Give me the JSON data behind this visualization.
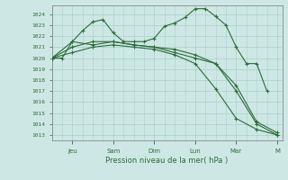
{
  "bg_color": "#cde8e4",
  "grid_color": "#aacfcb",
  "line_color": "#2d6b3a",
  "ylabel_vals": [
    1013,
    1014,
    1015,
    1016,
    1017,
    1018,
    1019,
    1020,
    1021,
    1022,
    1023,
    1024
  ],
  "xlabel": "Pression niveau de la mer( hPa )",
  "xtick_labels": [
    "Jeu",
    "Sam",
    "Dim",
    "Lun",
    "Mar",
    "M"
  ],
  "xtick_positions": [
    2,
    6,
    10,
    14,
    18,
    22
  ],
  "series1_x": [
    0,
    1,
    2,
    3,
    4,
    5,
    6,
    7,
    8,
    9,
    10,
    11,
    12,
    13,
    14,
    15,
    16,
    17,
    18,
    19,
    20,
    21
  ],
  "series1_y": [
    1020.0,
    1020.0,
    1021.5,
    1022.5,
    1023.3,
    1023.5,
    1022.3,
    1021.5,
    1021.5,
    1021.5,
    1021.8,
    1022.9,
    1023.2,
    1023.7,
    1024.5,
    1024.5,
    1023.8,
    1023.0,
    1021.0,
    1019.5,
    1019.5,
    1017.0
  ],
  "series2_x": [
    0,
    2,
    4,
    6,
    8,
    10,
    12,
    14,
    16,
    18,
    20,
    22
  ],
  "series2_y": [
    1020.0,
    1021.0,
    1021.5,
    1021.5,
    1021.2,
    1021.0,
    1020.8,
    1020.3,
    1019.5,
    1017.0,
    1014.0,
    1013.0
  ],
  "series3_x": [
    0,
    2,
    4,
    6,
    8,
    10,
    12,
    14,
    16,
    18,
    20,
    22
  ],
  "series3_y": [
    1020.0,
    1020.5,
    1021.0,
    1021.2,
    1021.0,
    1020.8,
    1020.3,
    1019.5,
    1017.2,
    1014.5,
    1013.5,
    1013.0
  ],
  "series4_x": [
    0,
    2,
    4,
    6,
    8,
    10,
    12,
    14,
    16,
    18,
    20,
    22
  ],
  "series4_y": [
    1020.0,
    1021.5,
    1021.2,
    1021.5,
    1021.2,
    1021.0,
    1020.5,
    1020.0,
    1019.5,
    1017.5,
    1014.2,
    1013.2
  ],
  "ylim": [
    1012.5,
    1024.8
  ],
  "xlim": [
    0,
    22.5
  ],
  "figsize": [
    3.2,
    2.0
  ],
  "dpi": 100
}
